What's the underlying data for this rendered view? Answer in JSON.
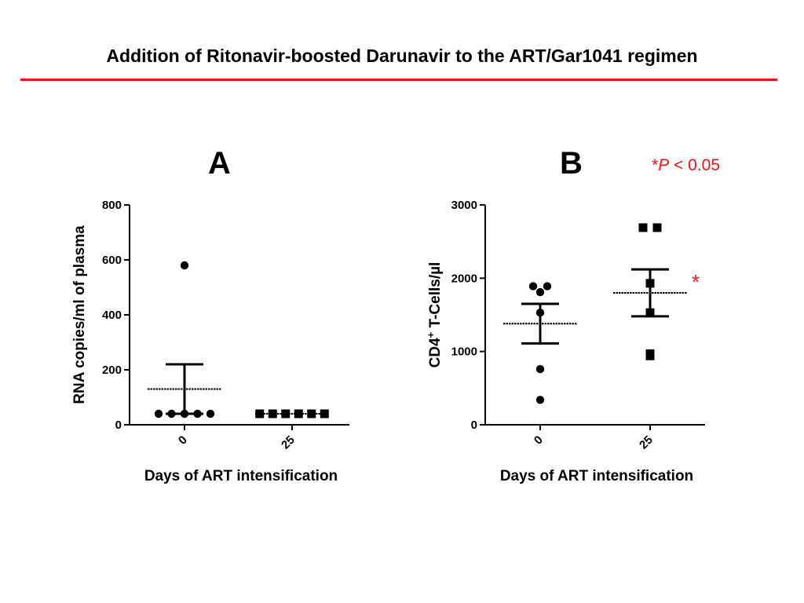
{
  "slide": {
    "title": "Addition of Ritonavir-boosted Darunavir to the ART/Gar1041 regimen",
    "rule_color": "#e8151b"
  },
  "significance": {
    "star": "*",
    "p_letter": "P",
    "p_rest": "< 0.05",
    "color": "#e8151b"
  },
  "chart_data": [
    {
      "panel": "A",
      "type": "scatter",
      "xlabel": "Days of ART intensification",
      "ylabel": "RNA copies/ml of plasma",
      "ylim": [
        0,
        800
      ],
      "yticks": [
        0,
        200,
        400,
        600,
        800
      ],
      "categories": [
        "0",
        "25"
      ],
      "series": [
        {
          "category": "0",
          "marker": "circle",
          "values": [
            580,
            40,
            40,
            40,
            40,
            40
          ],
          "mean": 130,
          "sem_low": 40,
          "sem_high": 220
        },
        {
          "category": "25",
          "marker": "square",
          "values": [
            40,
            40,
            40,
            40,
            40,
            40
          ],
          "mean": 40,
          "sem_low": 40,
          "sem_high": 40
        }
      ]
    },
    {
      "panel": "B",
      "type": "scatter",
      "xlabel": "Days of ART intensification",
      "ylabel_main": "CD4",
      "ylabel_sup": "+",
      "ylabel_rest": " T-Cells/µl",
      "ylim": [
        0,
        3000
      ],
      "yticks": [
        0,
        1000,
        2000,
        3000
      ],
      "categories": [
        "0",
        "25"
      ],
      "significant_category": "25",
      "series": [
        {
          "category": "0",
          "marker": "circle",
          "values": [
            1890,
            1890,
            1810,
            1530,
            760,
            340
          ],
          "mean": 1380,
          "sem_low": 1110,
          "sem_high": 1650
        },
        {
          "category": "25",
          "marker": "square",
          "values": [
            2690,
            2690,
            1930,
            1530,
            970,
            940
          ],
          "mean": 1800,
          "sem_low": 1480,
          "sem_high": 2120
        }
      ]
    }
  ]
}
